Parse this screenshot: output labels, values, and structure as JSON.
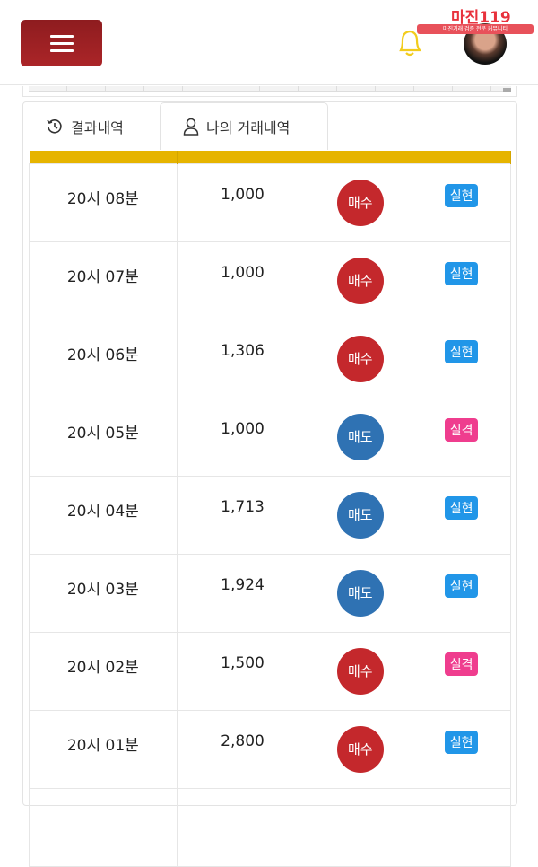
{
  "header": {
    "logo_text": "마진119",
    "logo_subtitle": "마진거래 검증 전문 커뮤니티"
  },
  "tabs": [
    {
      "label": "결과내역",
      "icon": "history-icon"
    },
    {
      "label": "나의 거래내역",
      "icon": "user-icon",
      "active": true
    }
  ],
  "colors": {
    "buy": "#c4282c",
    "sell": "#2f72b3",
    "realized": "#2196e8",
    "failed": "#ef3d8e",
    "header_bar": "#e6b400"
  },
  "rows": [
    {
      "time": "20시 08분",
      "amount": "1,000",
      "side": "매수",
      "type": "buy",
      "result": "실현"
    },
    {
      "time": "20시 07분",
      "amount": "1,000",
      "side": "매수",
      "type": "buy",
      "result": "실현"
    },
    {
      "time": "20시 06분",
      "amount": "1,306",
      "side": "매수",
      "type": "buy",
      "result": "실현"
    },
    {
      "time": "20시 05분",
      "amount": "1,000",
      "side": "매도",
      "type": "sell",
      "result": "실격"
    },
    {
      "time": "20시 04분",
      "amount": "1,713",
      "side": "매도",
      "type": "sell",
      "result": "실현"
    },
    {
      "time": "20시 03분",
      "amount": "1,924",
      "side": "매도",
      "type": "sell",
      "result": "실현"
    },
    {
      "time": "20시 02분",
      "amount": "1,500",
      "side": "매수",
      "type": "buy",
      "result": "실격"
    },
    {
      "time": "20시 01분",
      "amount": "2,800",
      "side": "매수",
      "type": "buy",
      "result": "실현"
    }
  ]
}
